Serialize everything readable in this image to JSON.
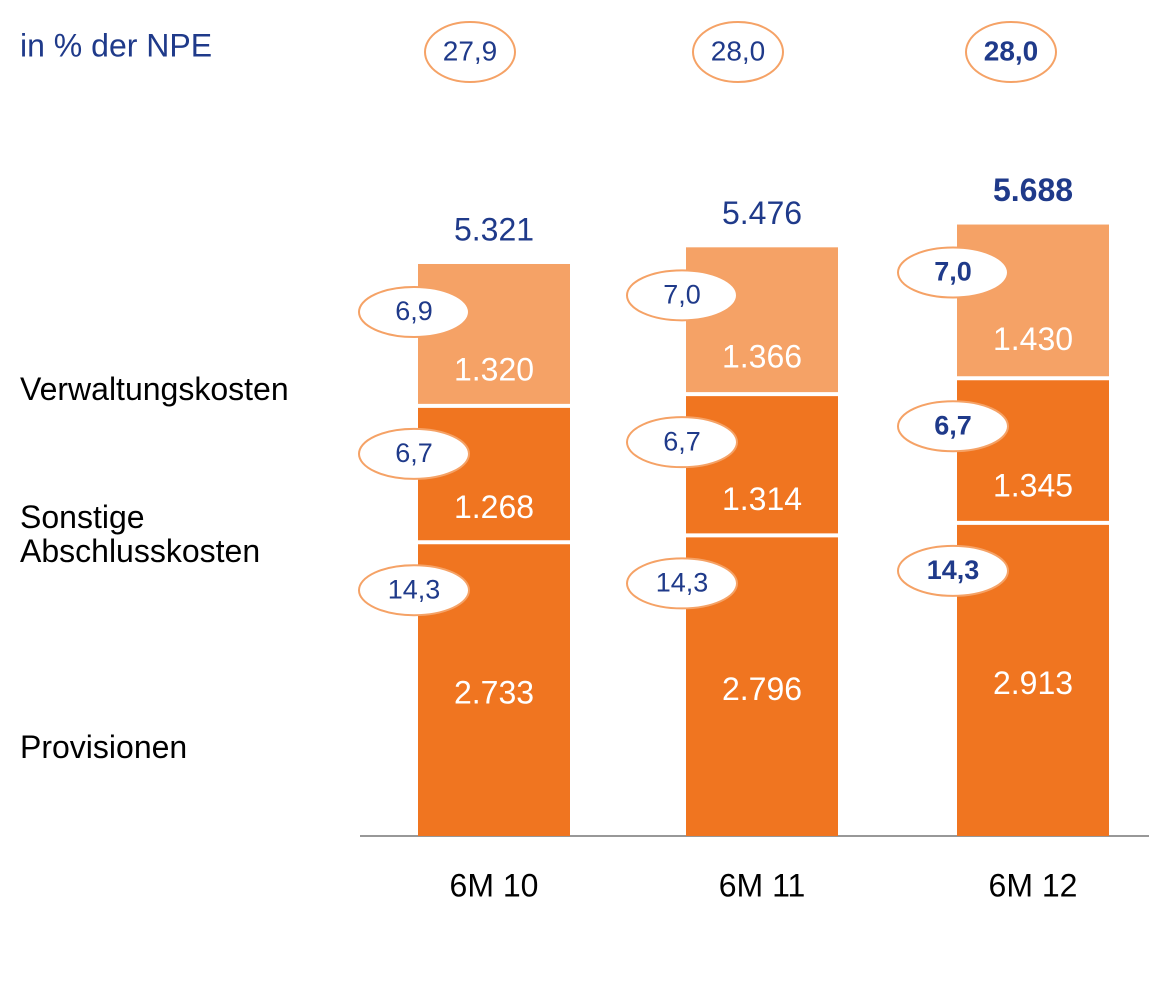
{
  "chart_data": {
    "type": "bar",
    "stacked": true,
    "ratio_title": "in % der NPE",
    "ratios": [
      27.9,
      28.0,
      28.0
    ],
    "ratio_labels": [
      "27,9",
      "28,0",
      "28,0"
    ],
    "categories": [
      "6M 10",
      "6M 11",
      "6M 12"
    ],
    "totals": {
      "values": [
        5321,
        5476,
        5688
      ],
      "value_labels": [
        "5.321",
        "5.476",
        "5.688"
      ]
    },
    "series": [
      {
        "name": "Provisionen",
        "color": "#f07520",
        "values": [
          2733,
          2796,
          2913
        ],
        "value_labels": [
          "2.733",
          "2.796",
          "2.913"
        ],
        "ratios": [
          14.3,
          14.3,
          14.3
        ],
        "ratio_labels": [
          "14,3",
          "14,3",
          "14,3"
        ]
      },
      {
        "name": "Sonstige Abschlusskosten",
        "color": "#f07520",
        "values": [
          1268,
          1314,
          1345
        ],
        "value_labels": [
          "1.268",
          "1.314",
          "1.345"
        ],
        "ratios": [
          6.7,
          6.7,
          6.7
        ],
        "ratio_labels": [
          "6,7",
          "6,7",
          "6,7"
        ]
      },
      {
        "name": "Verwaltungskosten",
        "color": "#f5a266",
        "values": [
          1320,
          1366,
          1430
        ],
        "value_labels": [
          "1.320",
          "1.366",
          "1.430"
        ],
        "ratios": [
          6.9,
          7.0,
          7.0
        ],
        "ratio_labels": [
          "6,9",
          "7,0",
          "7,0"
        ]
      }
    ]
  }
}
